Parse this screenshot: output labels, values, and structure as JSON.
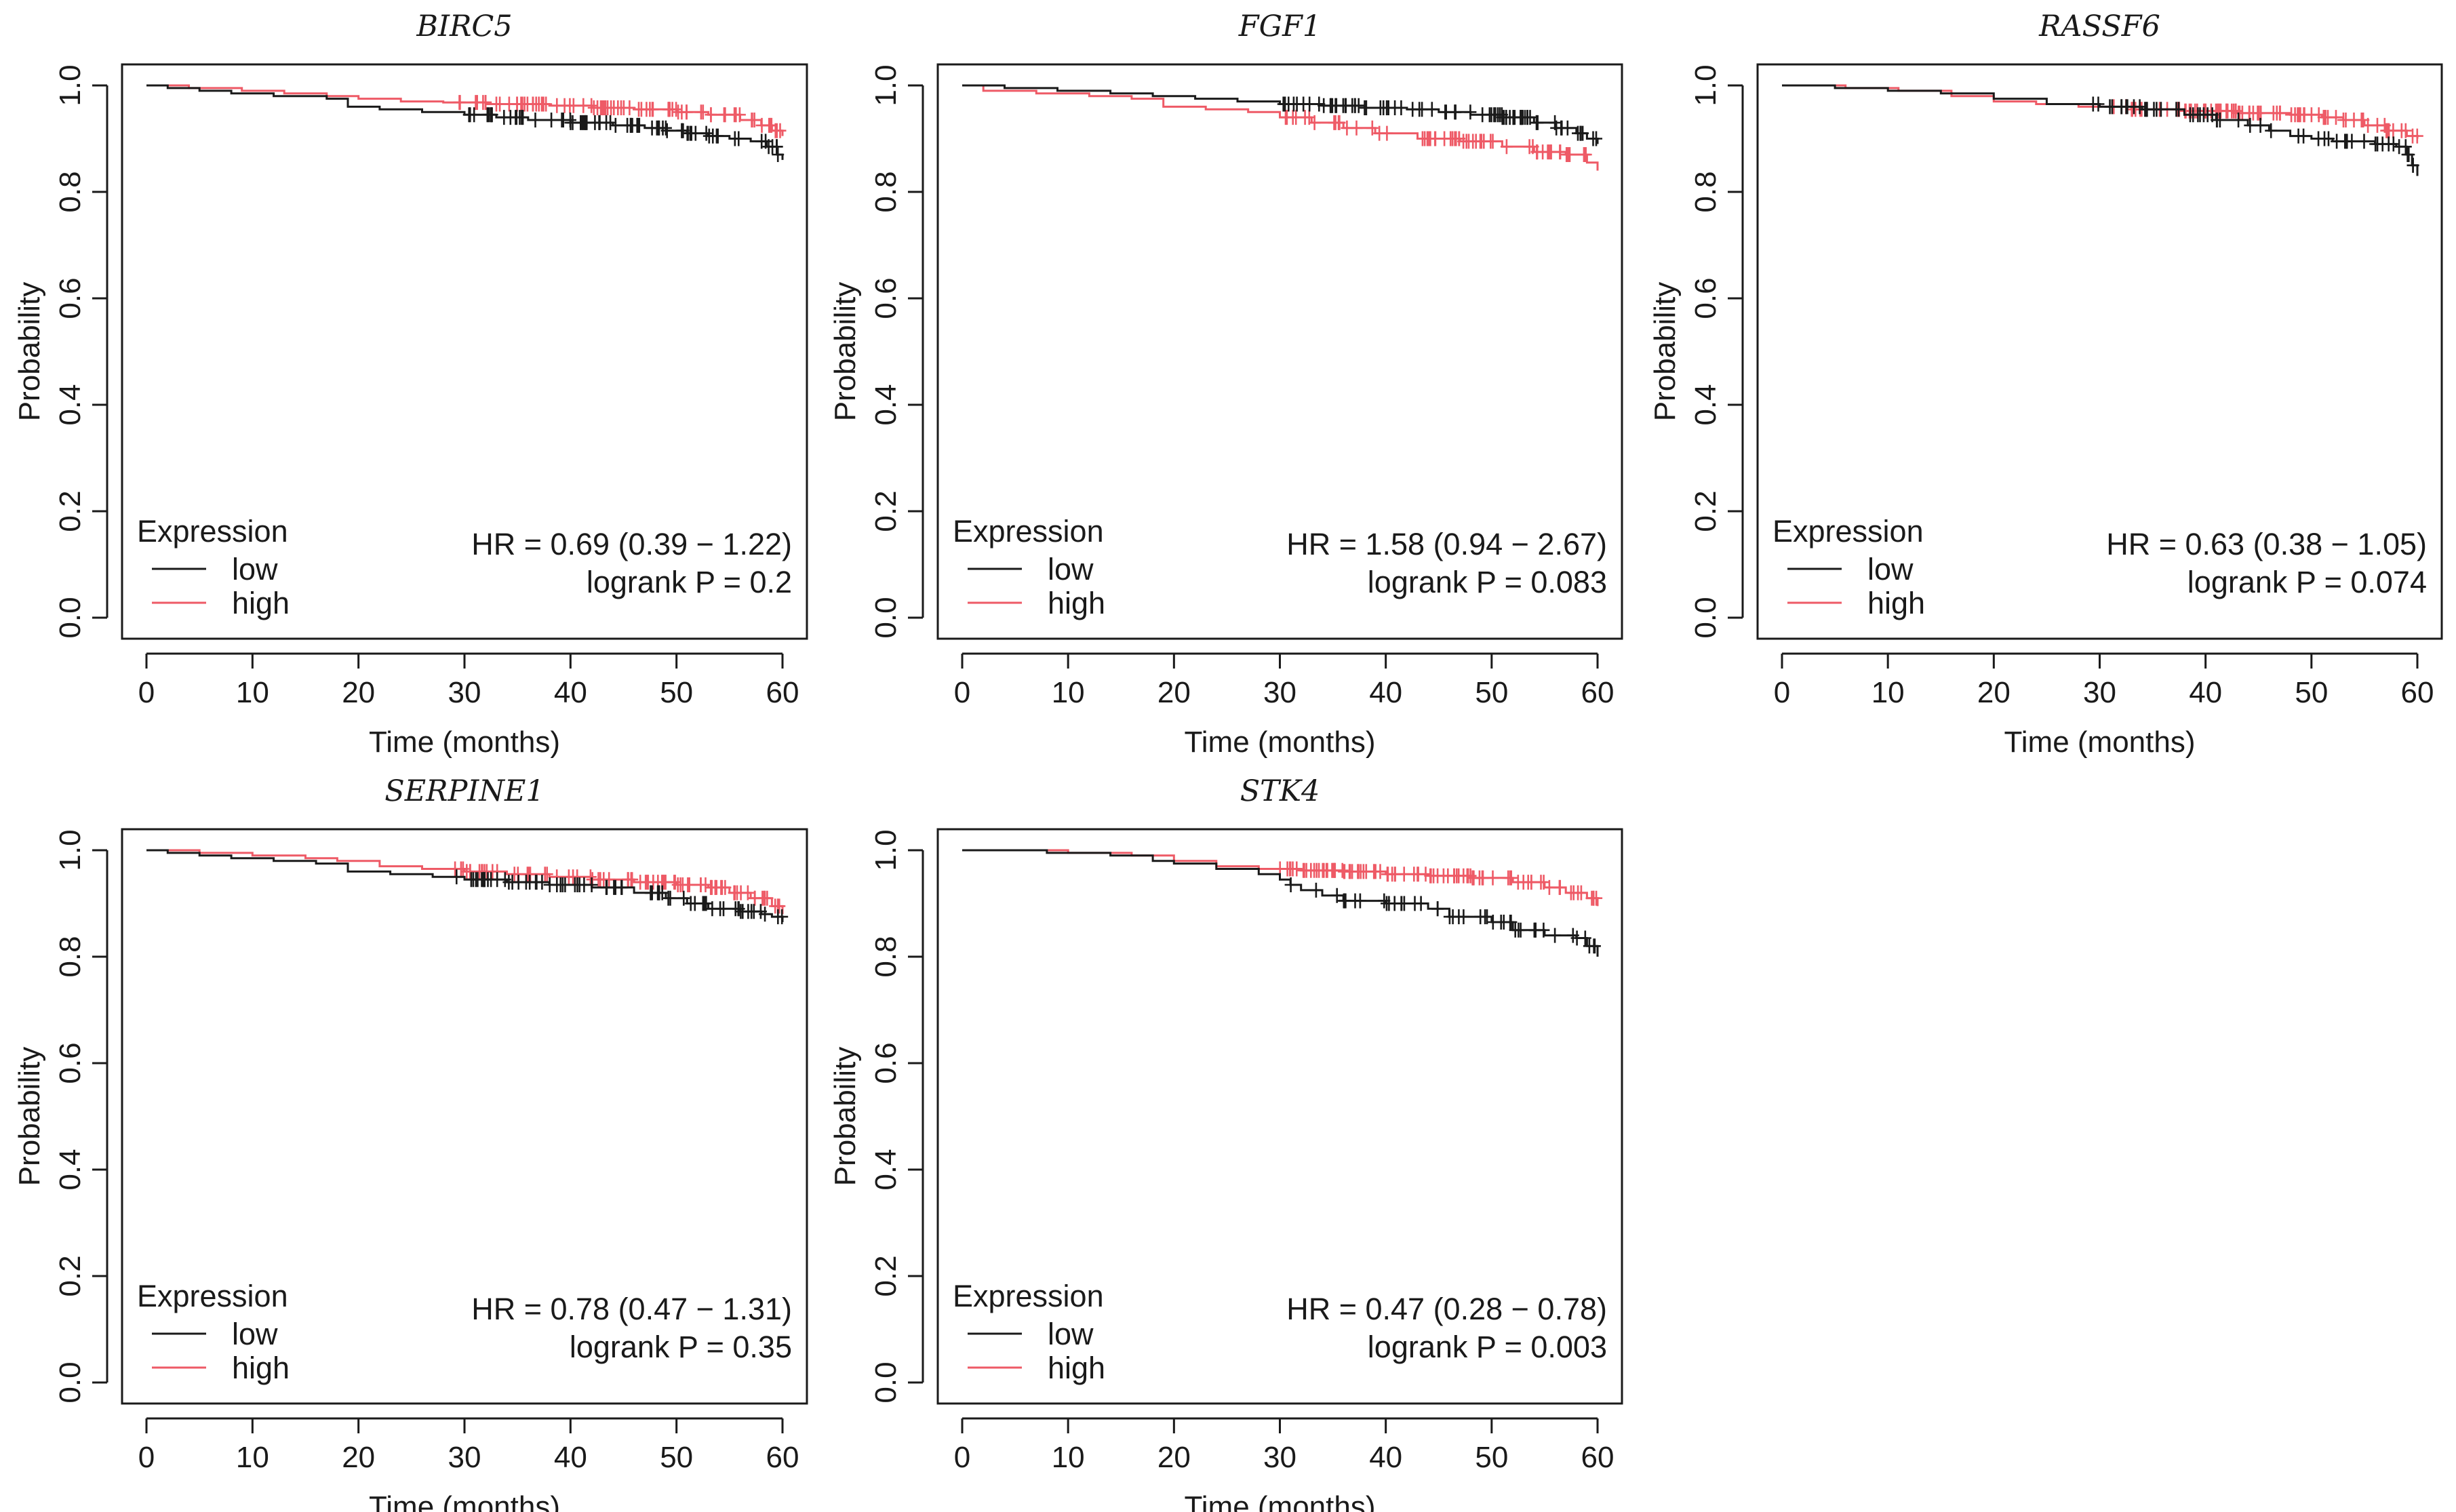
{
  "chart_data": [
    {
      "type": "line",
      "title": "BIRC5",
      "xlabel": "Time (months)",
      "ylabel": "Probability",
      "xlim": [
        0,
        60
      ],
      "ylim": [
        0,
        1
      ],
      "xticks": [
        "0",
        "10",
        "20",
        "30",
        "40",
        "50",
        "60"
      ],
      "yticks": [
        "0.0",
        "0.2",
        "0.4",
        "0.6",
        "0.8",
        "1.0"
      ],
      "legend_title": "Expression",
      "legend_position": "bottom-left",
      "hr_text": "HR = 0.69 (0.39 − 1.22)",
      "p_text": "logrank P = 0.2",
      "series": [
        {
          "name": "low",
          "color": "#1a1a1a",
          "steps": [
            [
              0,
              1.0
            ],
            [
              2,
              0.995
            ],
            [
              5,
              0.99
            ],
            [
              8,
              0.985
            ],
            [
              12,
              0.98
            ],
            [
              17,
              0.975
            ],
            [
              19,
              0.96
            ],
            [
              22,
              0.955
            ],
            [
              26,
              0.95
            ],
            [
              30,
              0.945
            ],
            [
              33,
              0.94
            ],
            [
              36,
              0.935
            ],
            [
              40,
              0.93
            ],
            [
              44,
              0.925
            ],
            [
              47,
              0.92
            ],
            [
              49,
              0.915
            ],
            [
              51,
              0.91
            ],
            [
              53,
              0.905
            ],
            [
              55,
              0.9
            ],
            [
              57,
              0.895
            ],
            [
              58.5,
              0.885
            ],
            [
              59.5,
              0.87
            ],
            [
              60,
              0.86
            ]
          ],
          "censor_from": 30,
          "censor_count": 70
        },
        {
          "name": "high",
          "color": "#ee5a66",
          "steps": [
            [
              0,
              1.0
            ],
            [
              4,
              0.995
            ],
            [
              9,
              0.99
            ],
            [
              13,
              0.985
            ],
            [
              17,
              0.98
            ],
            [
              20,
              0.975
            ],
            [
              24,
              0.97
            ],
            [
              28,
              0.968
            ],
            [
              32,
              0.965
            ],
            [
              38,
              0.962
            ],
            [
              42,
              0.958
            ],
            [
              46,
              0.955
            ],
            [
              50,
              0.95
            ],
            [
              53,
              0.945
            ],
            [
              56,
              0.935
            ],
            [
              58,
              0.925
            ],
            [
              59,
              0.915
            ],
            [
              60,
              0.905
            ]
          ],
          "censor_from": 29,
          "censor_count": 80
        }
      ]
    },
    {
      "type": "line",
      "title": "FGF1",
      "xlabel": "Time (months)",
      "ylabel": "Probability",
      "xlim": [
        0,
        60
      ],
      "ylim": [
        0,
        1
      ],
      "xticks": [
        "0",
        "10",
        "20",
        "30",
        "40",
        "50",
        "60"
      ],
      "yticks": [
        "0.0",
        "0.2",
        "0.4",
        "0.6",
        "0.8",
        "1.0"
      ],
      "legend_title": "Expression",
      "legend_position": "bottom-left",
      "hr_text": "HR = 1.58 (0.94 − 2.67)",
      "p_text": "logrank P = 0.083",
      "series": [
        {
          "name": "low",
          "color": "#1a1a1a",
          "steps": [
            [
              0,
              1.0
            ],
            [
              4,
              0.995
            ],
            [
              9,
              0.99
            ],
            [
              14,
              0.985
            ],
            [
              18,
              0.98
            ],
            [
              22,
              0.975
            ],
            [
              26,
              0.97
            ],
            [
              30,
              0.965
            ],
            [
              34,
              0.962
            ],
            [
              38,
              0.958
            ],
            [
              42,
              0.955
            ],
            [
              45,
              0.95
            ],
            [
              48,
              0.945
            ],
            [
              51,
              0.94
            ],
            [
              54,
              0.93
            ],
            [
              56,
              0.92
            ],
            [
              58,
              0.91
            ],
            [
              59,
              0.9
            ],
            [
              60,
              0.89
            ]
          ],
          "censor_from": 30,
          "censor_count": 80
        },
        {
          "name": "high",
          "color": "#ee5a66",
          "steps": [
            [
              0,
              1.0
            ],
            [
              2,
              0.99
            ],
            [
              7,
              0.985
            ],
            [
              12,
              0.98
            ],
            [
              16,
              0.975
            ],
            [
              19,
              0.96
            ],
            [
              23,
              0.955
            ],
            [
              27,
              0.95
            ],
            [
              30,
              0.94
            ],
            [
              33,
              0.93
            ],
            [
              36,
              0.92
            ],
            [
              39,
              0.91
            ],
            [
              43,
              0.9
            ],
            [
              47,
              0.895
            ],
            [
              51,
              0.885
            ],
            [
              54,
              0.875
            ],
            [
              57,
              0.87
            ],
            [
              59,
              0.855
            ],
            [
              60,
              0.84
            ]
          ],
          "censor_from": 30,
          "censor_count": 60
        }
      ]
    },
    {
      "type": "line",
      "title": "RASSF6",
      "xlabel": "Time (months)",
      "ylabel": "Probability",
      "xlim": [
        0,
        60
      ],
      "ylim": [
        0,
        1
      ],
      "xticks": [
        "0",
        "10",
        "20",
        "30",
        "40",
        "50",
        "60"
      ],
      "yticks": [
        "0.0",
        "0.2",
        "0.4",
        "0.6",
        "0.8",
        "1.0"
      ],
      "legend_title": "Expression",
      "legend_position": "bottom-left",
      "hr_text": "HR = 0.63 (0.38 − 1.05)",
      "p_text": "logrank P = 0.074",
      "series": [
        {
          "name": "low",
          "color": "#1a1a1a",
          "steps": [
            [
              0,
              1.0
            ],
            [
              5,
              0.995
            ],
            [
              10,
              0.99
            ],
            [
              15,
              0.985
            ],
            [
              20,
              0.975
            ],
            [
              25,
              0.965
            ],
            [
              30,
              0.96
            ],
            [
              34,
              0.955
            ],
            [
              38,
              0.945
            ],
            [
              41,
              0.935
            ],
            [
              44,
              0.925
            ],
            [
              46,
              0.915
            ],
            [
              48,
              0.905
            ],
            [
              50,
              0.9
            ],
            [
              52,
              0.895
            ],
            [
              56,
              0.89
            ],
            [
              58,
              0.885
            ],
            [
              59,
              0.87
            ],
            [
              59.5,
              0.85
            ],
            [
              60,
              0.83
            ]
          ],
          "censor_from": 29,
          "censor_count": 55
        },
        {
          "name": "high",
          "color": "#ee5a66",
          "steps": [
            [
              0,
              1.0
            ],
            [
              6,
              0.995
            ],
            [
              11,
              0.99
            ],
            [
              16,
              0.98
            ],
            [
              20,
              0.97
            ],
            [
              24,
              0.965
            ],
            [
              28,
              0.96
            ],
            [
              33,
              0.955
            ],
            [
              38,
              0.952
            ],
            [
              43,
              0.948
            ],
            [
              48,
              0.945
            ],
            [
              51,
              0.94
            ],
            [
              53,
              0.935
            ],
            [
              55,
              0.925
            ],
            [
              57,
              0.915
            ],
            [
              59,
              0.905
            ],
            [
              60,
              0.9
            ]
          ],
          "censor_from": 30,
          "censor_count": 80
        }
      ]
    },
    {
      "type": "line",
      "title": "SERPINE1",
      "xlabel": "Time (months)",
      "ylabel": "Probability",
      "xlim": [
        0,
        60
      ],
      "ylim": [
        0,
        1
      ],
      "xticks": [
        "0",
        "10",
        "20",
        "30",
        "40",
        "50",
        "60"
      ],
      "yticks": [
        "0.0",
        "0.2",
        "0.4",
        "0.6",
        "0.8",
        "1.0"
      ],
      "legend_title": "Expression",
      "legend_position": "bottom-left",
      "hr_text": "HR = 0.78 (0.47 − 1.31)",
      "p_text": "logrank P = 0.35",
      "series": [
        {
          "name": "low",
          "color": "#1a1a1a",
          "steps": [
            [
              0,
              1.0
            ],
            [
              2,
              0.995
            ],
            [
              5,
              0.99
            ],
            [
              8,
              0.985
            ],
            [
              12,
              0.98
            ],
            [
              16,
              0.975
            ],
            [
              19,
              0.96
            ],
            [
              23,
              0.955
            ],
            [
              27,
              0.95
            ],
            [
              30,
              0.945
            ],
            [
              34,
              0.94
            ],
            [
              38,
              0.935
            ],
            [
              42,
              0.93
            ],
            [
              46,
              0.92
            ],
            [
              49,
              0.91
            ],
            [
              51,
              0.9
            ],
            [
              53,
              0.89
            ],
            [
              56,
              0.885
            ],
            [
              58,
              0.88
            ],
            [
              59,
              0.875
            ],
            [
              60,
              0.865
            ]
          ],
          "censor_from": 29,
          "censor_count": 70
        },
        {
          "name": "high",
          "color": "#ee5a66",
          "steps": [
            [
              0,
              1.0
            ],
            [
              5,
              0.995
            ],
            [
              10,
              0.99
            ],
            [
              15,
              0.985
            ],
            [
              18,
              0.98
            ],
            [
              22,
              0.97
            ],
            [
              26,
              0.965
            ],
            [
              30,
              0.96
            ],
            [
              34,
              0.955
            ],
            [
              38,
              0.95
            ],
            [
              42,
              0.945
            ],
            [
              46,
              0.94
            ],
            [
              50,
              0.935
            ],
            [
              53,
              0.93
            ],
            [
              55,
              0.92
            ],
            [
              57,
              0.91
            ],
            [
              59,
              0.895
            ],
            [
              60,
              0.88
            ]
          ],
          "censor_from": 29,
          "censor_count": 80
        }
      ]
    },
    {
      "type": "line",
      "title": "STK4",
      "xlabel": "Time (months)",
      "ylabel": "Probability",
      "xlim": [
        0,
        60
      ],
      "ylim": [
        0,
        1
      ],
      "xticks": [
        "0",
        "10",
        "20",
        "30",
        "40",
        "50",
        "60"
      ],
      "yticks": [
        "0.0",
        "0.2",
        "0.4",
        "0.6",
        "0.8",
        "1.0"
      ],
      "legend_title": "Expression",
      "legend_position": "bottom-left",
      "hr_text": "HR = 0.47 (0.28 − 0.78)",
      "p_text": "logrank P = 0.003",
      "series": [
        {
          "name": "low",
          "color": "#1a1a1a",
          "steps": [
            [
              0,
              1.0
            ],
            [
              8,
              0.995
            ],
            [
              14,
              0.99
            ],
            [
              18,
              0.98
            ],
            [
              20,
              0.975
            ],
            [
              24,
              0.965
            ],
            [
              28,
              0.955
            ],
            [
              30,
              0.945
            ],
            [
              31,
              0.935
            ],
            [
              32,
              0.925
            ],
            [
              34,
              0.915
            ],
            [
              36,
              0.905
            ],
            [
              40,
              0.9
            ],
            [
              44,
              0.89
            ],
            [
              46,
              0.875
            ],
            [
              50,
              0.865
            ],
            [
              52,
              0.85
            ],
            [
              55,
              0.84
            ],
            [
              58,
              0.835
            ],
            [
              59,
              0.82
            ],
            [
              60,
              0.8
            ]
          ],
          "censor_from": 31,
          "censor_count": 45
        },
        {
          "name": "high",
          "color": "#ee5a66",
          "steps": [
            [
              0,
              1.0
            ],
            [
              10,
              0.995
            ],
            [
              16,
              0.99
            ],
            [
              20,
              0.98
            ],
            [
              24,
              0.97
            ],
            [
              28,
              0.965
            ],
            [
              32,
              0.962
            ],
            [
              36,
              0.96
            ],
            [
              40,
              0.955
            ],
            [
              44,
              0.952
            ],
            [
              48,
              0.948
            ],
            [
              52,
              0.94
            ],
            [
              55,
              0.93
            ],
            [
              57,
              0.92
            ],
            [
              59,
              0.91
            ],
            [
              60,
              0.895
            ]
          ],
          "censor_from": 30,
          "censor_count": 90
        }
      ]
    }
  ]
}
